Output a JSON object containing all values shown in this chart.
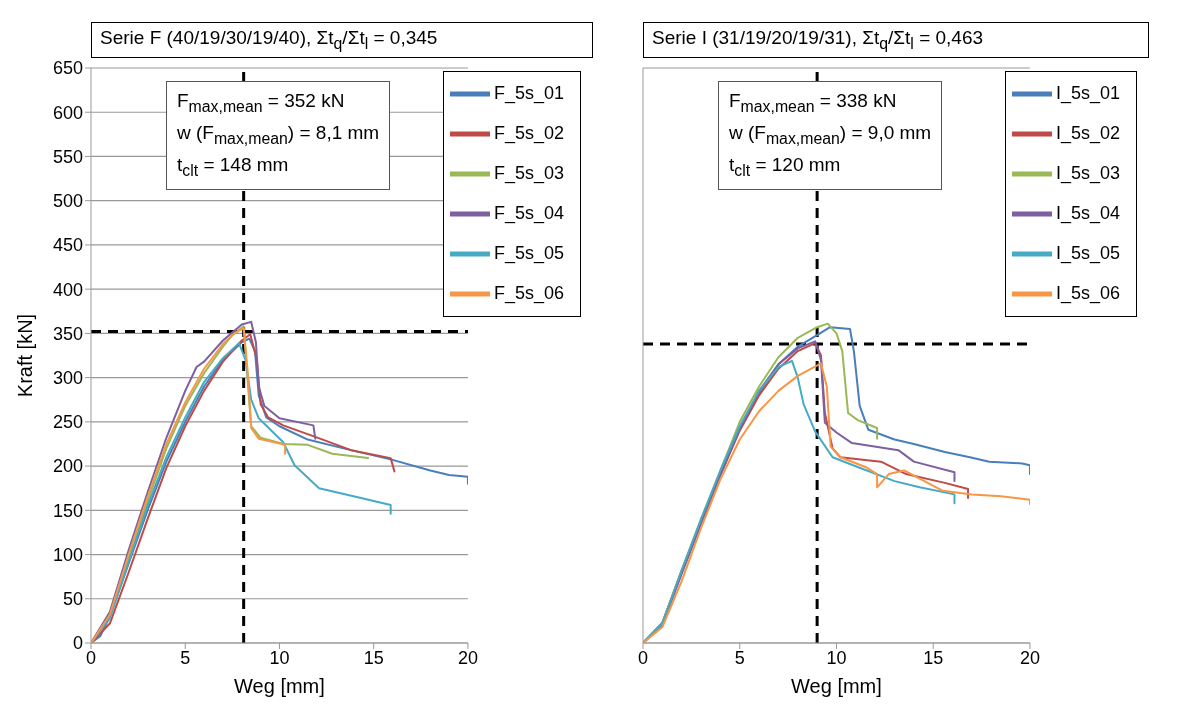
{
  "chart_data": [
    {
      "type": "line",
      "title": "Serie F (40/19/30/19/40), Σt$_{q}$/Σt$_{l}$ = 0,345",
      "xlabel": "Weg [mm]",
      "ylabel": "Kraft [kN]",
      "xlim": [
        0,
        20
      ],
      "xticks": [
        0,
        5,
        10,
        15,
        20
      ],
      "ylim": [
        0,
        650
      ],
      "yticks": [
        0,
        50,
        100,
        150,
        200,
        250,
        300,
        350,
        400,
        450,
        500,
        550,
        600,
        650
      ],
      "grid": "y",
      "legend": "top right",
      "line_style": "solid",
      "annotations": [
        "F$_{max,mean}$ = 352 kN",
        "w (F$_{max,mean}$) = 8,1 mm",
        "t$_{clt}$ = 148 mm"
      ],
      "ref_lines": [
        {
          "axis": "y",
          "value": 352,
          "color": "#000000",
          "line_style": "dashed"
        },
        {
          "axis": "x",
          "value": 8.1,
          "color": "#000000",
          "line_style": "dashed"
        }
      ],
      "series": [
        {
          "name": "F_5s_01",
          "color": "#4a7ebb",
          "x": [
            0,
            0.5,
            1,
            2,
            3,
            4,
            5,
            6,
            7,
            8,
            8.4,
            8.7,
            8.9,
            9.3,
            10,
            11.5,
            13.4,
            16,
            18,
            19,
            20,
            20
          ],
          "values": [
            0,
            8,
            30,
            90,
            150,
            205,
            250,
            290,
            320,
            340,
            344,
            330,
            280,
            255,
            245,
            230,
            220,
            207,
            195,
            190,
            188,
            180
          ]
        },
        {
          "name": "F_5s_02",
          "color": "#be4b48",
          "x": [
            0,
            1,
            2,
            3,
            4,
            5,
            6,
            7,
            8,
            8.45,
            8.8,
            9,
            9.4,
            10.2,
            11.9,
            13.8,
            15.9,
            16.1
          ],
          "values": [
            0,
            22,
            80,
            140,
            198,
            245,
            285,
            318,
            342,
            349,
            320,
            270,
            255,
            246,
            233,
            218,
            209,
            194
          ]
        },
        {
          "name": "F_5s_03",
          "color": "#98b954",
          "x": [
            0,
            1,
            2,
            3,
            4,
            5,
            6,
            7,
            7.5,
            8.1,
            8.3,
            8.5,
            9,
            10.2,
            11.5,
            12.8,
            14.7
          ],
          "values": [
            0,
            30,
            95,
            160,
            220,
            268,
            305,
            335,
            348,
            358,
            300,
            245,
            232,
            225,
            224,
            214,
            209
          ]
        },
        {
          "name": "F_5s_04",
          "color": "#7d60a0",
          "x": [
            0,
            1,
            2,
            3,
            4,
            5,
            5.6,
            6,
            7,
            8,
            8.5,
            8.75,
            8.9,
            9.2,
            10,
            11.8,
            11.9
          ],
          "values": [
            0,
            35,
            105,
            170,
            232,
            285,
            312,
            318,
            342,
            360,
            363,
            340,
            290,
            268,
            254,
            246,
            231
          ]
        },
        {
          "name": "F_5s_05",
          "color": "#46aac5",
          "x": [
            0,
            1,
            2,
            3,
            4,
            5,
            6,
            7,
            7.85,
            8.2,
            8.5,
            8.9,
            10.2,
            10.8,
            12.1,
            14.1,
            15.9,
            15.9
          ],
          "values": [
            0,
            28,
            92,
            155,
            210,
            255,
            295,
            322,
            339,
            320,
            275,
            254,
            227,
            201,
            175,
            165,
            156,
            146
          ]
        },
        {
          "name": "F_5s_06",
          "color": "#f79646",
          "x": [
            0,
            1,
            2,
            3,
            4,
            5,
            6,
            7,
            7.6,
            8.1,
            8.3,
            8.5,
            8.9,
            9.9,
            10.3,
            10.3
          ],
          "values": [
            0,
            32,
            100,
            165,
            225,
            272,
            310,
            338,
            350,
            356,
            310,
            243,
            231,
            226,
            224,
            214
          ]
        }
      ]
    },
    {
      "type": "line",
      "title": "Serie I (31/19/20/19/31), Σt$_{q}$/Σt$_{l}$ = 0,463",
      "xlabel": "Weg [mm]",
      "xlim": [
        0,
        20
      ],
      "xticks": [
        0,
        5,
        10,
        15,
        20
      ],
      "ylim": [
        0,
        650
      ],
      "yticks": [
        0,
        50,
        100,
        150,
        200,
        250,
        300,
        350,
        400,
        450,
        500,
        550,
        600,
        650
      ],
      "tick_labels": "x",
      "grid": "y",
      "legend": "top right",
      "line_style": "solid",
      "annotations": [
        "F$_{max,mean}$ = 338 kN",
        "w (F$_{max,mean}$) = 9,0 mm",
        "t$_{clt}$ = 120 mm"
      ],
      "ref_lines": [
        {
          "axis": "y",
          "value": 338,
          "color": "#000000",
          "line_style": "dashed"
        },
        {
          "axis": "x",
          "value": 9.0,
          "color": "#000000",
          "line_style": "dashed"
        }
      ],
      "series": [
        {
          "name": "I_5s_01",
          "color": "#4a7ebb",
          "x": [
            0,
            1,
            2,
            3,
            4,
            5,
            6,
            7,
            8,
            9,
            9.67,
            10.7,
            10.9,
            11.2,
            11.65,
            13,
            14,
            15.6,
            16.9,
            17.9,
            19.6,
            20,
            20
          ],
          "values": [
            0,
            22,
            80,
            135,
            190,
            243,
            283,
            315,
            335,
            348,
            357,
            355,
            330,
            268,
            241,
            230,
            225,
            216,
            210,
            205,
            203,
            201,
            191
          ]
        },
        {
          "name": "I_5s_02",
          "color": "#be4b48",
          "x": [
            0,
            1,
            2,
            3,
            4,
            5,
            6,
            7,
            8,
            8.9,
            9.2,
            9.4,
            9.8,
            10.2,
            12.3,
            13.6,
            15.6,
            16.8,
            16.8
          ],
          "values": [
            0,
            23,
            82,
            137,
            190,
            240,
            280,
            310,
            330,
            339,
            325,
            260,
            220,
            210,
            205,
            191,
            181,
            174,
            164
          ]
        },
        {
          "name": "I_5s_03",
          "color": "#98b954",
          "x": [
            0,
            1,
            2,
            3,
            4,
            5,
            6,
            7,
            8,
            9,
            9.55,
            10,
            10.3,
            10.6,
            11.1,
            12.1,
            12.1
          ],
          "values": [
            0,
            22,
            82,
            140,
            195,
            250,
            290,
            323,
            345,
            357,
            361,
            350,
            330,
            260,
            252,
            243,
            231
          ]
        },
        {
          "name": "I_5s_04",
          "color": "#7d60a0",
          "x": [
            0,
            1,
            2,
            3,
            4,
            5,
            6,
            7,
            8,
            8.9,
            9.2,
            9.4,
            10,
            10.8,
            13.2,
            14,
            16.1,
            16.1
          ],
          "values": [
            0,
            20,
            78,
            135,
            190,
            242,
            285,
            315,
            333,
            341,
            320,
            249,
            238,
            226,
            218,
            205,
            193,
            183
          ]
        },
        {
          "name": "I_5s_05",
          "color": "#46aac5",
          "x": [
            0,
            1,
            2,
            3,
            4,
            5,
            6,
            7,
            7.7,
            8,
            8.3,
            8.9,
            9.8,
            11.1,
            13,
            14.3,
            16.1,
            16.1
          ],
          "values": [
            0,
            22,
            82,
            140,
            195,
            245,
            285,
            312,
            319,
            300,
            270,
            239,
            210,
            199,
            183,
            176,
            168,
            158
          ]
        },
        {
          "name": "I_5s_06",
          "color": "#f79646",
          "x": [
            0,
            1,
            2,
            3,
            4,
            5,
            6,
            7,
            8,
            9.2,
            9.5,
            9.7,
            10.2,
            11.5,
            12.1,
            12.1,
            12.7,
            13.5,
            14.2,
            15.5,
            17,
            18.5,
            20,
            20
          ],
          "values": [
            0,
            18,
            70,
            130,
            185,
            230,
            262,
            285,
            302,
            316,
            290,
            222,
            210,
            199,
            191,
            176,
            191,
            195,
            187,
            172,
            168,
            166,
            162,
            157
          ]
        }
      ]
    }
  ]
}
